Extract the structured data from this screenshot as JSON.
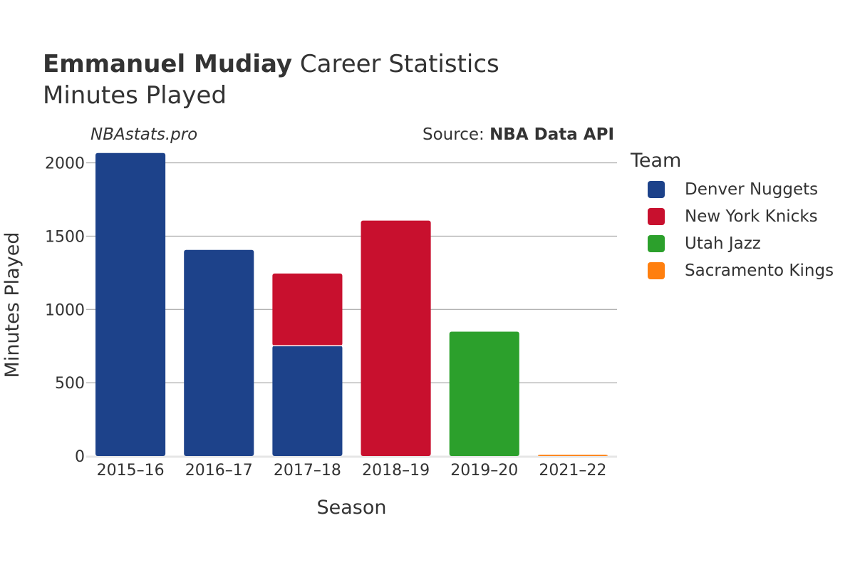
{
  "header": {
    "player": "Emmanuel Mudiay",
    "title_rest": "Career Statistics",
    "subtitle": "Minutes Played",
    "watermark": "NBAstats.pro",
    "source_prefix": "Source: ",
    "source_name": "NBA Data API"
  },
  "legend": {
    "title": "Team",
    "items": [
      {
        "label": "Denver Nuggets",
        "color": "#1d428a"
      },
      {
        "label": "New York Knicks",
        "color": "#c8102e"
      },
      {
        "label": "Utah Jazz",
        "color": "#2ca02c"
      },
      {
        "label": "Sacramento Kings",
        "color": "#ff7f0e"
      }
    ]
  },
  "chart_data": {
    "type": "bar",
    "stacked": true,
    "title": "Emmanuel Mudiay Career Statistics",
    "subtitle": "Minutes Played",
    "xlabel": "Season",
    "ylabel": "Minutes Played",
    "ylim": [
      0,
      2100
    ],
    "yticks": [
      0,
      500,
      1000,
      1500,
      2000
    ],
    "grid": true,
    "legend_position": "right",
    "categories": [
      "2015–16",
      "2016–17",
      "2017–18",
      "2018–19",
      "2019–20",
      "2021–22"
    ],
    "series": [
      {
        "name": "Denver Nuggets",
        "color": "#1d428a",
        "values": [
          2067,
          1406,
          752,
          0,
          0,
          0
        ]
      },
      {
        "name": "New York Knicks",
        "color": "#c8102e",
        "values": [
          0,
          0,
          493,
          1606,
          0,
          0
        ]
      },
      {
        "name": "Utah Jazz",
        "color": "#2ca02c",
        "values": [
          0,
          0,
          0,
          0,
          848,
          0
        ]
      },
      {
        "name": "Sacramento Kings",
        "color": "#ff7f0e",
        "values": [
          0,
          0,
          0,
          0,
          0,
          8
        ]
      }
    ]
  }
}
